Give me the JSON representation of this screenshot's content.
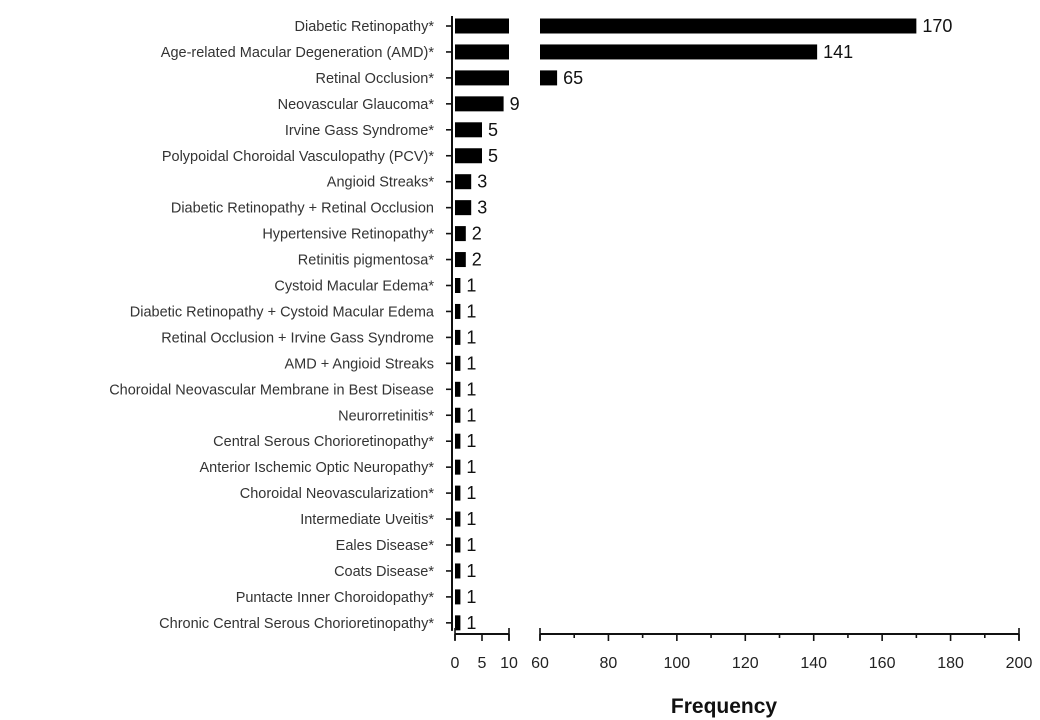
{
  "chart_data": {
    "type": "bar",
    "orientation": "horizontal",
    "broken_axis": true,
    "categories": [
      "Diabetic Retinopathy*",
      "Age-related Macular Degeneration (AMD)*",
      "Retinal Occlusion*",
      "Neovascular Glaucoma*",
      "Irvine Gass Syndrome*",
      "Polypoidal Choroidal Vasculopathy (PCV)*",
      "Angioid Streaks*",
      "Diabetic Retinopathy + Retinal Occlusion",
      "Hypertensive Retinopathy*",
      "Retinitis pigmentosa*",
      "Cystoid Macular Edema*",
      "Diabetic Retinopathy + Cystoid Macular Edema",
      "Retinal Occlusion + Irvine Gass Syndrome",
      "AMD + Angioid Streaks",
      "Choroidal Neovascular Membrane in Best Disease",
      "Neurorretinitis*",
      "Central Serous Chorioretinopathy*",
      "Anterior Ischemic Optic Neuropathy*",
      "Choroidal Neovascularization*",
      "Intermediate Uveitis*",
      "Eales Disease*",
      "Coats Disease*",
      "Puntacte Inner Choroidopathy*",
      "Chronic Central Serous Chorioretinopathy*"
    ],
    "values": [
      170,
      141,
      65,
      9,
      5,
      5,
      3,
      3,
      2,
      2,
      1,
      1,
      1,
      1,
      1,
      1,
      1,
      1,
      1,
      1,
      1,
      1,
      1,
      1
    ],
    "xlabel": "Frequency",
    "segments": [
      {
        "xlim": [
          0,
          10
        ],
        "ticks": [
          0,
          5,
          10
        ]
      },
      {
        "xlim": [
          60,
          200
        ],
        "ticks": [
          60,
          80,
          100,
          120,
          140,
          160,
          180,
          200
        ]
      }
    ],
    "bar_color": "#000000",
    "grid": false,
    "legend": "none"
  }
}
